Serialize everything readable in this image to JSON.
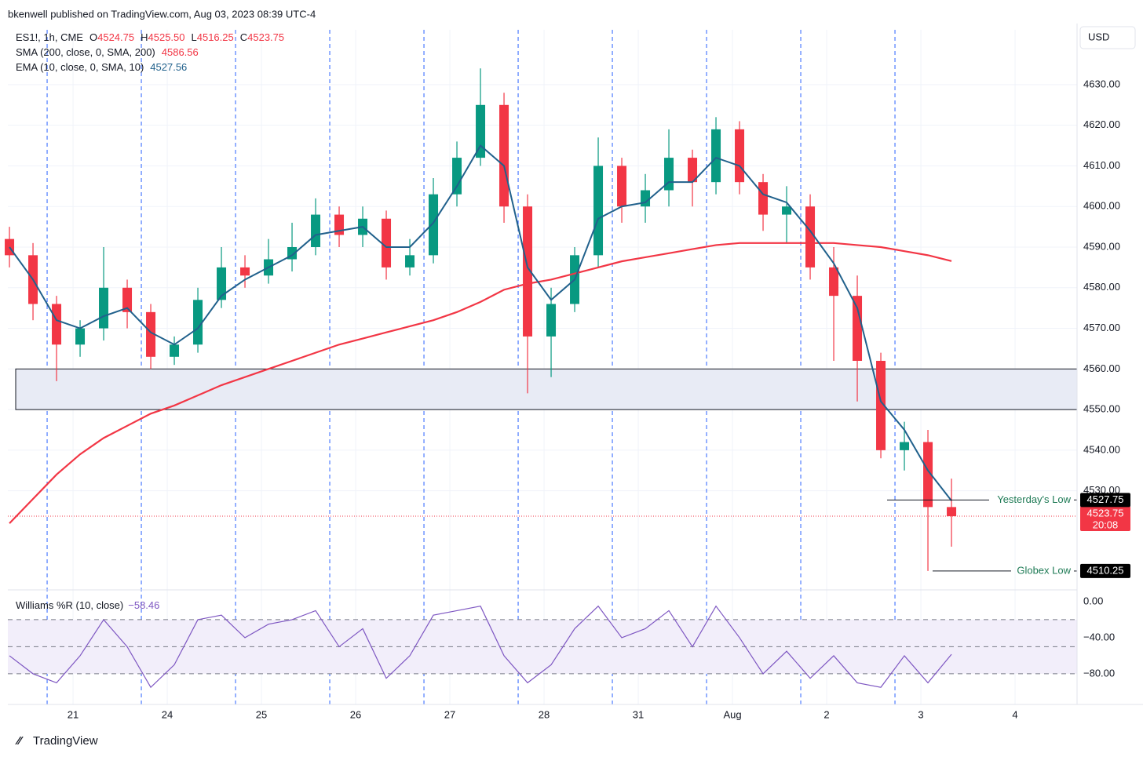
{
  "header": {
    "publisher": "bkenwell published on TradingView.com, Aug 03, 2023 08:39 UTC-4"
  },
  "chart_data": {
    "type": "candlestick",
    "symbol": "ES1!, 1h, CME",
    "ohlc_legend": [
      {
        "key": "O",
        "value": "4524.75"
      },
      {
        "key": "H",
        "value": "4525.50"
      },
      {
        "key": "L",
        "value": "4516.25"
      },
      {
        "key": "C",
        "value": "4523.75"
      }
    ],
    "currency": "USD",
    "x": [
      -0.675,
      -0.425,
      -0.175,
      0.075,
      0.325,
      0.575,
      0.825,
      1.075,
      1.325,
      1.575,
      1.825,
      2.075,
      2.325,
      2.575,
      2.825,
      3.075,
      3.325,
      3.575,
      3.825,
      4.075,
      4.325,
      4.575,
      4.825,
      5.075,
      5.325,
      5.575,
      5.825,
      6.075,
      6.325,
      6.575,
      6.825,
      7.075,
      7.325,
      7.575,
      7.825,
      8.075,
      8.325,
      8.575,
      8.825,
      9.075,
      9.325
    ],
    "xlim": [
      -0.692,
      10.658
    ],
    "xticks": [
      {
        "value": 0,
        "label": "21"
      },
      {
        "value": 1,
        "label": "24"
      },
      {
        "value": 2,
        "label": "25"
      },
      {
        "value": 3,
        "label": "26"
      },
      {
        "value": 4,
        "label": "27"
      },
      {
        "value": 5,
        "label": "28"
      },
      {
        "value": 6,
        "label": "31"
      },
      {
        "value": 7,
        "label": "Aug"
      },
      {
        "value": 8,
        "label": "2"
      },
      {
        "value": 9,
        "label": "3"
      },
      {
        "value": 10,
        "label": "4"
      }
    ],
    "open": [
      4592,
      4588,
      4576,
      4566,
      4570,
      4580,
      4574,
      4563,
      4566,
      4577,
      4585,
      4583,
      4587,
      4590,
      4598,
      4593,
      4597,
      4585,
      4588,
      4603,
      4612,
      4625,
      4600,
      4568,
      4576,
      4588,
      4610,
      4600,
      4604,
      4612,
      4606,
      4619,
      4606,
      4598,
      4600,
      4585,
      4578,
      4562,
      4540,
      4542,
      4526
    ],
    "high": [
      4595,
      4591,
      4578,
      4572,
      4590,
      4582,
      4576,
      4568,
      4580,
      4590,
      4588,
      4592,
      4596,
      4602,
      4600,
      4600,
      4599,
      4592,
      4607,
      4616,
      4634,
      4628,
      4603,
      4580,
      4590,
      4617,
      4612,
      4608,
      4619,
      4614,
      4622,
      4621,
      4608,
      4605,
      4603,
      4590,
      4583,
      4564,
      4547,
      4545,
      4533
    ],
    "low": [
      4585,
      4572,
      4557,
      4563,
      4567,
      4570,
      4560,
      4561,
      4564,
      4575,
      4580,
      4581,
      4584,
      4588,
      4590,
      4590,
      4582,
      4583,
      4586,
      4600,
      4610,
      4596,
      4554,
      4558,
      4574,
      4585,
      4596,
      4596,
      4600,
      4600,
      4603,
      4603,
      4594,
      4591,
      4582,
      4562,
      4552,
      4538,
      4535,
      4510.25,
      4516.25
    ],
    "close": [
      4588,
      4576,
      4566,
      4570,
      4580,
      4574,
      4563,
      4566,
      4577,
      4585,
      4583,
      4587,
      4590,
      4598,
      4593,
      4597,
      4585,
      4588,
      4603,
      4612,
      4625,
      4600,
      4568,
      4576,
      4588,
      4610,
      4600,
      4604,
      4612,
      4606,
      4619,
      4606,
      4598,
      4600,
      4585,
      4578,
      4562,
      4540,
      4542,
      4526,
      4523.75
    ],
    "up_color": "#089981",
    "down_color": "#f23645",
    "ylim": [
      4505.6,
      4643.5
    ],
    "yticks": [
      {
        "value": 4530,
        "label": "4530.00"
      },
      {
        "value": 4540,
        "label": "4540.00"
      },
      {
        "value": 4550,
        "label": "4550.00"
      },
      {
        "value": 4560,
        "label": "4560.00"
      },
      {
        "value": 4570,
        "label": "4570.00"
      },
      {
        "value": 4580,
        "label": "4580.00"
      },
      {
        "value": 4590,
        "label": "4590.00"
      },
      {
        "value": 4600,
        "label": "4600.00"
      },
      {
        "value": 4610,
        "label": "4610.00"
      },
      {
        "value": 4620,
        "label": "4620.00"
      },
      {
        "value": 4630,
        "label": "4630.00"
      }
    ],
    "grid": true,
    "overlays": [
      {
        "name": "SMA (200, close, 0, SMA, 200)",
        "last": "4586.56",
        "color": "#f23645",
        "values": [
          4522,
          4528,
          4534,
          4539,
          4543,
          4546,
          4549,
          4551,
          4553.5,
          4556,
          4558,
          4560,
          4562,
          4564,
          4566,
          4567.5,
          4569,
          4570.5,
          4572,
          4574,
          4576.5,
          4579.5,
          4581,
          4582,
          4583.5,
          4585,
          4586.5,
          4587.5,
          4588.5,
          4589.5,
          4590.5,
          4591,
          4591,
          4591,
          4591,
          4591,
          4590.5,
          4590,
          4589,
          4588,
          4586.56
        ]
      },
      {
        "name": "EMA (10, close, 0, SMA, 10)",
        "last": "4527.56",
        "color": "#21618c",
        "values": [
          4590,
          4582,
          4572,
          4570,
          4573,
          4575,
          4569,
          4566,
          4570,
          4578,
          4582,
          4585,
          4588,
          4593,
          4594,
          4595,
          4590,
          4590,
          4596,
          4605,
          4615,
          4610,
          4585,
          4577,
          4582,
          4597,
          4600,
          4601,
          4606,
          4606,
          4612,
          4610,
          4603,
          4601,
          4594,
          4586,
          4575,
          4552,
          4545,
          4535,
          4527.56
        ]
      }
    ],
    "zone": {
      "from": 4550,
      "to": 4560,
      "color": "#e8ebf5"
    },
    "levels": [
      {
        "label": "Yesterday's Low",
        "value": 4527.75
      },
      {
        "label": "Globex Low",
        "value": 4510.25
      }
    ],
    "last_price": {
      "value": 4523.75,
      "countdown": "20:08"
    },
    "indicator": {
      "name": "Williams %R (10, close)",
      "last": "−58.46",
      "color": "#7e57c2",
      "values": [
        -60,
        -80,
        -90,
        -60,
        -20,
        -50,
        -95,
        -70,
        -20,
        -15,
        -40,
        -25,
        -20,
        -10,
        -50,
        -30,
        -85,
        -60,
        -15,
        -10,
        -5,
        -60,
        -90,
        -70,
        -30,
        -5,
        -40,
        -30,
        -10,
        -50,
        -5,
        -40,
        -80,
        -55,
        -85,
        -60,
        -90,
        -95,
        -60,
        -90,
        -58.46
      ],
      "ylim": [
        -114,
        13
      ],
      "yticks": [
        {
          "value": 0,
          "label": "0.00"
        },
        {
          "value": -40,
          "label": "−40.00"
        },
        {
          "value": -80,
          "label": "−80.00"
        }
      ],
      "bands": [
        -20,
        -80
      ],
      "mid": -50
    }
  },
  "footer": {
    "brand": "TradingView"
  }
}
